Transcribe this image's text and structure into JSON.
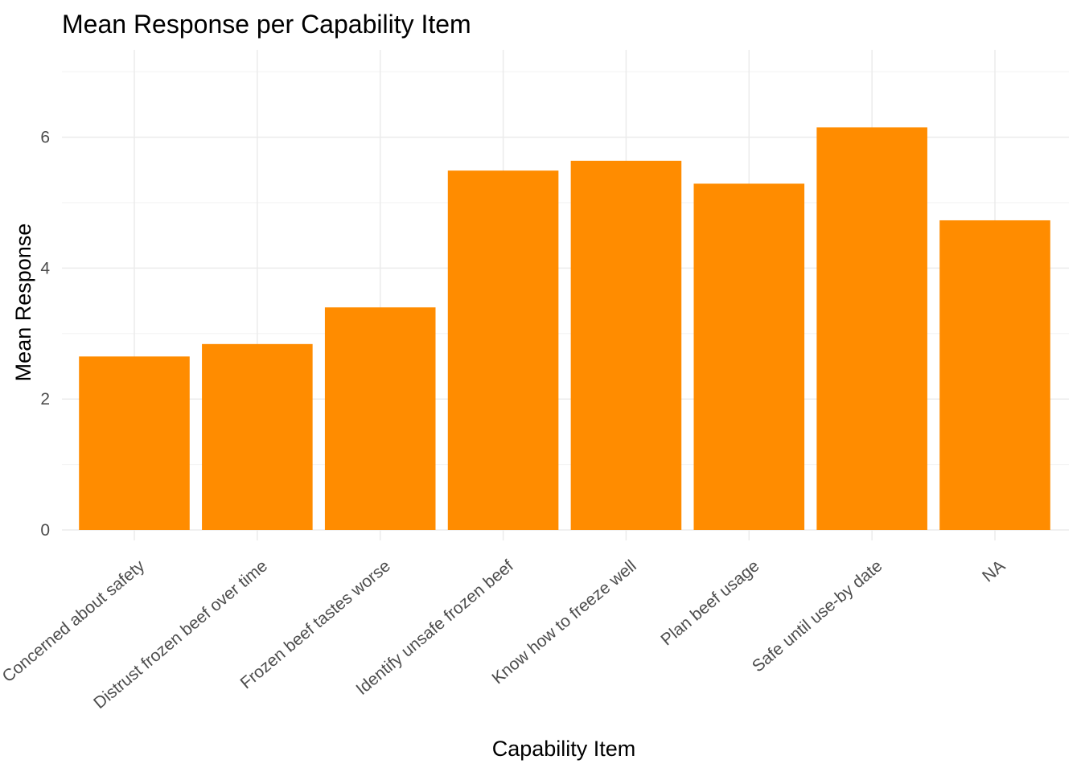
{
  "chart_data": {
    "type": "bar",
    "title": "Mean Response per Capability Item",
    "xlabel": "Capability Item",
    "ylabel": "Mean Response",
    "categories": [
      "Concerned about safety",
      "Distrust frozen beef over time",
      "Frozen beef tastes worse",
      "Identify unsafe frozen beef",
      "Know how to freeze well",
      "Plan beef usage",
      "Safe until use-by date",
      "NA"
    ],
    "values": [
      2.65,
      2.84,
      3.4,
      5.49,
      5.64,
      5.29,
      6.15,
      4.73
    ],
    "ylim": [
      0,
      7.1
    ],
    "yticks": [
      0,
      2,
      4,
      6
    ],
    "bar_color": "#ff8c00",
    "grid": true,
    "legend": "none"
  }
}
